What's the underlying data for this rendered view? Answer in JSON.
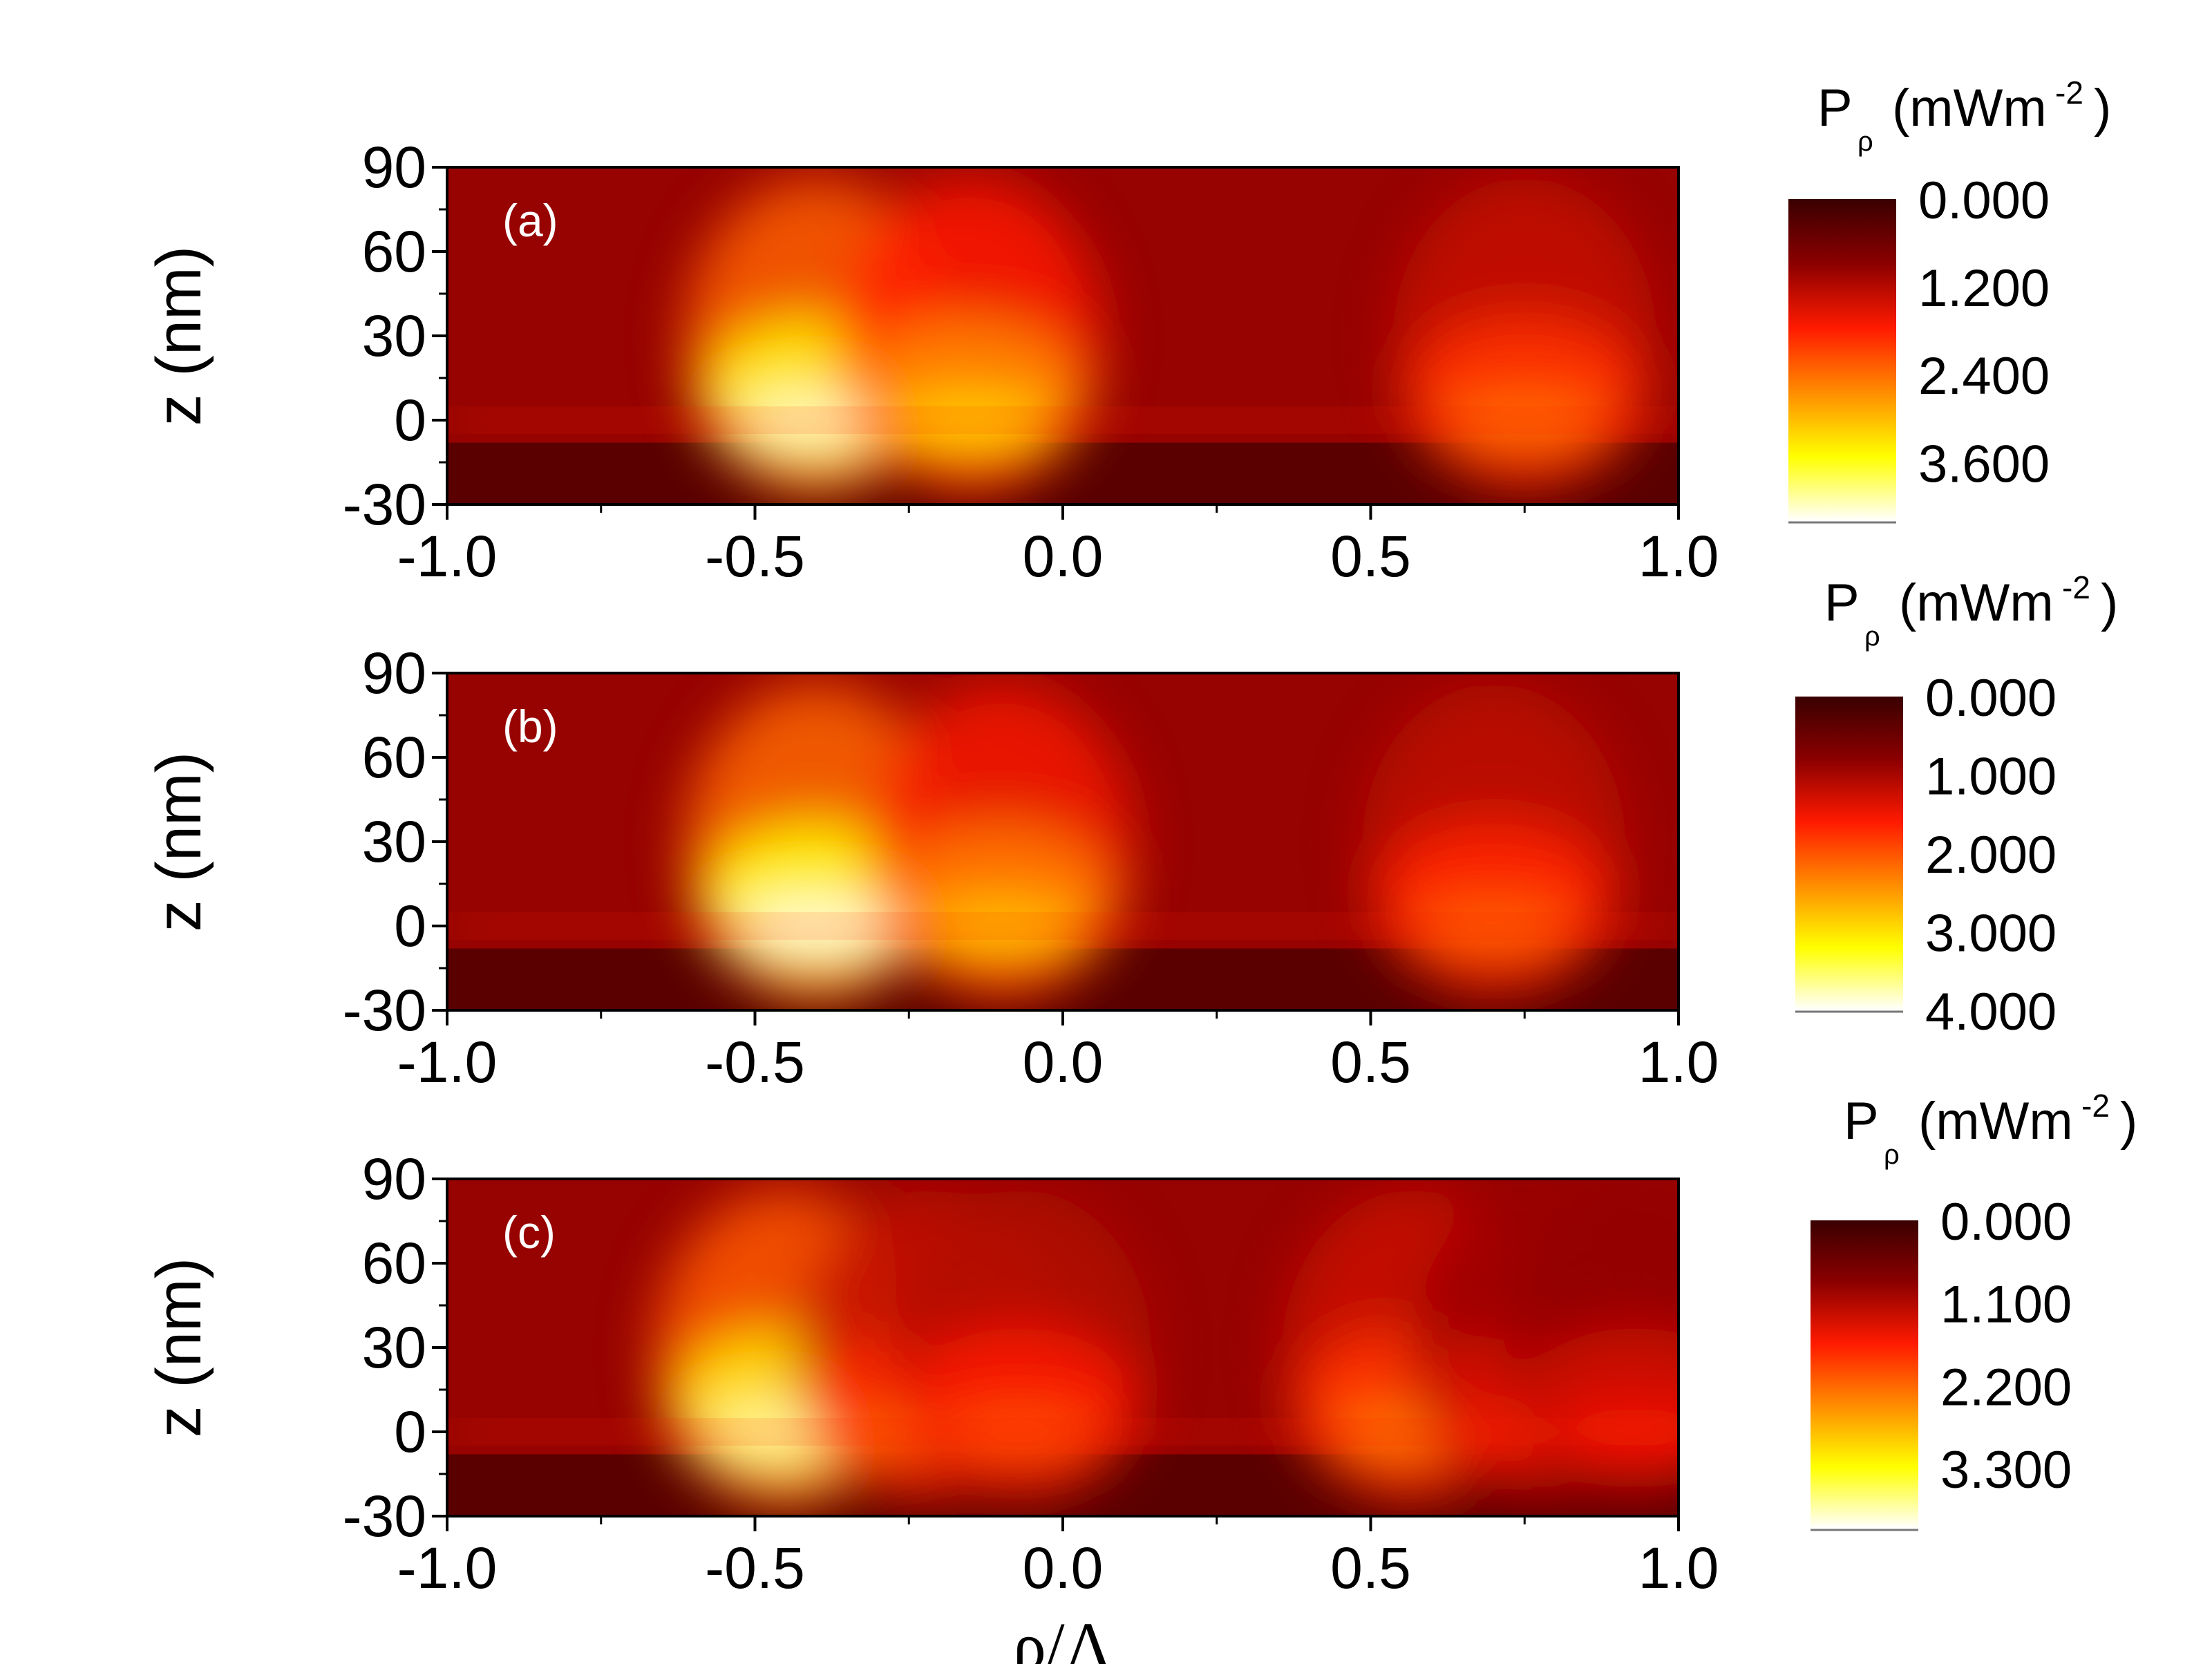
{
  "chart_data": [
    {
      "type": "heatmap",
      "panel_label": "(a)",
      "xlabel": "",
      "ylabel": "z (nm)",
      "xlim": [
        -1.0,
        1.0
      ],
      "ylim": [
        -30,
        90
      ],
      "xticks": [
        "-1.0",
        "-0.5",
        "0.0",
        "0.5",
        "1.0"
      ],
      "yticks": [
        "90",
        "60",
        "30",
        "0",
        "-30"
      ],
      "colorbar": {
        "title": "P",
        "subscript": "ρ",
        "unit_prefix": "(mWm",
        "unit_exp": "-2",
        "unit_suffix": ")",
        "ticks": [
          "0.000",
          "1.200",
          "2.400",
          "3.600"
        ],
        "range": [
          0,
          4.4
        ]
      },
      "hotspots": [
        {
          "rho": -0.4,
          "z": 0,
          "intensity": 4.2
        },
        {
          "rho": -0.15,
          "z": 0,
          "intensity": 3.2
        },
        {
          "rho": 0.75,
          "z": 0,
          "intensity": 2.4
        }
      ]
    },
    {
      "type": "heatmap",
      "panel_label": "(b)",
      "xlabel": "",
      "ylabel": "z (nm)",
      "xlim": [
        -1.0,
        1.0
      ],
      "ylim": [
        -30,
        90
      ],
      "xticks": [
        "-1.0",
        "-0.5",
        "0.0",
        "0.5",
        "1.0"
      ],
      "yticks": [
        "90",
        "60",
        "30",
        "0",
        "-30"
      ],
      "colorbar": {
        "title": "P",
        "subscript": "ρ",
        "unit_prefix": "(mWm",
        "unit_exp": "-2",
        "unit_suffix": ")",
        "ticks": [
          "0.000",
          "1.000",
          "2.000",
          "3.000",
          "4.000"
        ],
        "range": [
          0,
          4.0
        ]
      },
      "hotspots": [
        {
          "rho": -0.4,
          "z": 0,
          "intensity": 3.9
        },
        {
          "rho": -0.1,
          "z": 0,
          "intensity": 2.8
        },
        {
          "rho": 0.7,
          "z": 0,
          "intensity": 2.1
        }
      ]
    },
    {
      "type": "heatmap",
      "panel_label": "(c)",
      "xlabel": "ρ/Λ",
      "ylabel": "z (nm)",
      "xlim": [
        -1.0,
        1.0
      ],
      "ylim": [
        -30,
        90
      ],
      "xticks": [
        "-1.0",
        "-0.5",
        "0.0",
        "0.5",
        "1.0"
      ],
      "yticks": [
        "90",
        "60",
        "30",
        "0",
        "-30"
      ],
      "colorbar": {
        "title": "P",
        "subscript": "ρ",
        "unit_prefix": "(mWm",
        "unit_exp": "-2",
        "unit_suffix": ")",
        "ticks": [
          "0.000",
          "1.100",
          "2.200",
          "3.300"
        ],
        "range": [
          0,
          4.1
        ]
      },
      "hotspots": [
        {
          "rho": -0.45,
          "z": 0,
          "intensity": 3.8
        },
        {
          "rho": -0.22,
          "z": 0,
          "intensity": 2.2
        },
        {
          "rho": -0.07,
          "z": 0,
          "intensity": 2.0
        },
        {
          "rho": 0.57,
          "z": 0,
          "intensity": 2.3
        },
        {
          "rho": 0.78,
          "z": 0,
          "intensity": 1.7
        },
        {
          "rho": 0.93,
          "z": 0,
          "intensity": 1.6
        }
      ]
    }
  ]
}
